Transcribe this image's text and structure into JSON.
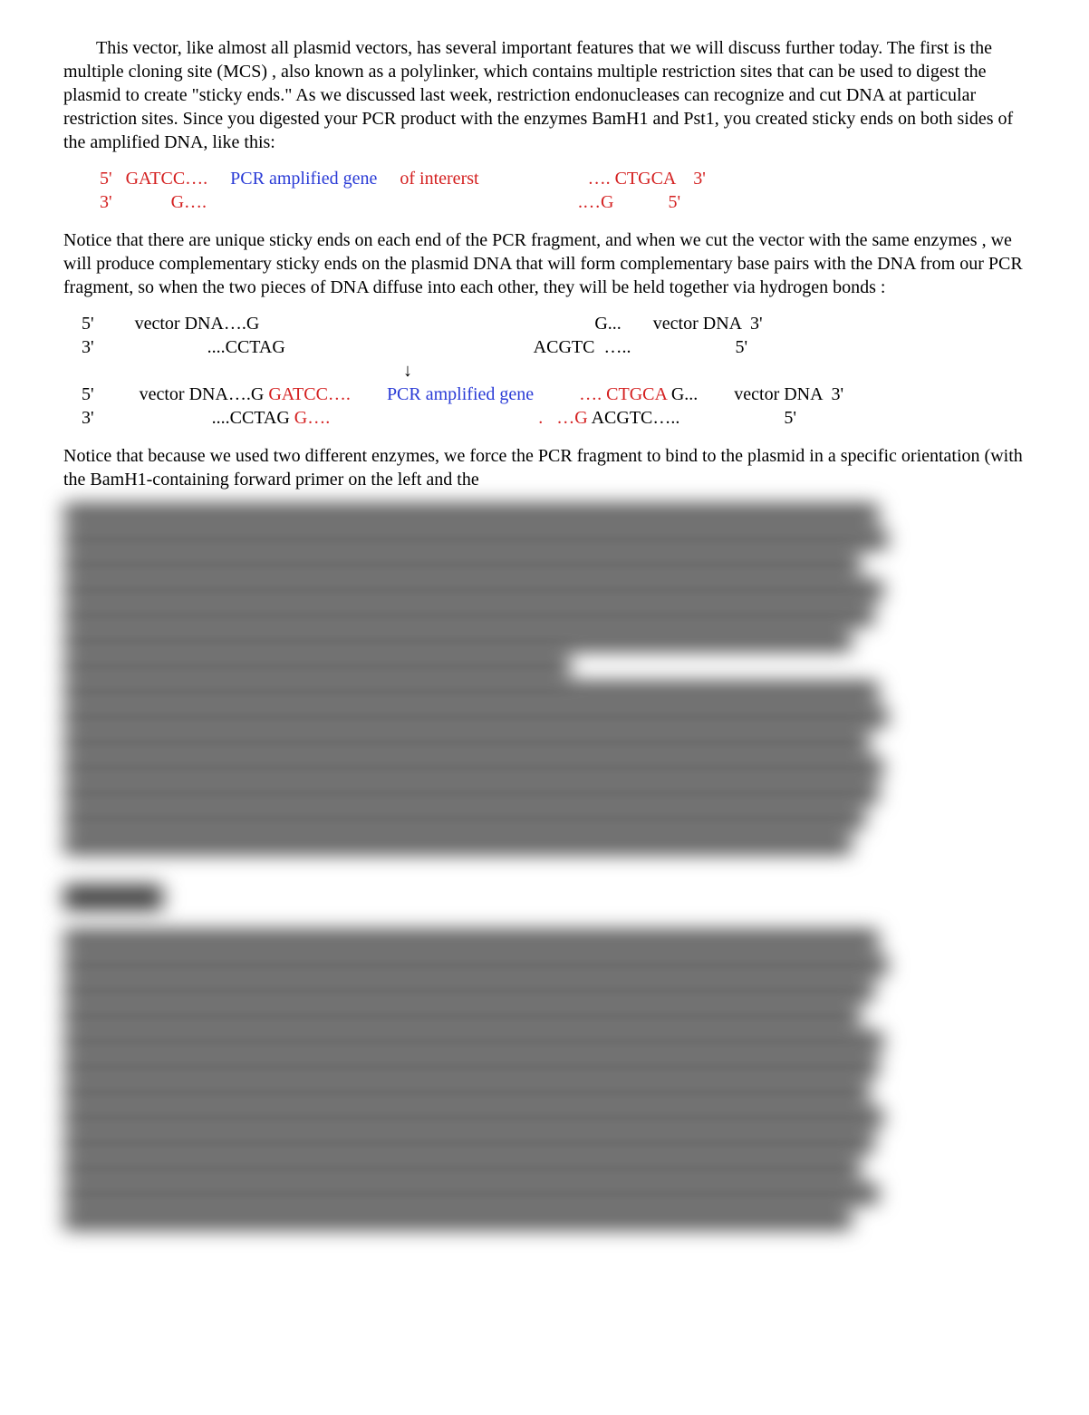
{
  "colors": {
    "text": "#000000",
    "red": "#d42020",
    "blue": "#2a3bd6",
    "bg": "#ffffff",
    "blur_text": "#4a4a4a",
    "blur_dark": "#3a3a3a"
  },
  "p1_a": "This vector, like almost all plasmid vectors, has several important features that we will discuss further today.    The first is the   multiple cloning site (MCS)",
  "p1_b": ", also known as a polylinker, which contains multiple restriction sites that can be used to digest the plasmid to create \"sticky ends.\"  As we discussed last week, restriction endonucleases can recognize and cut DNA at particular restriction sites.     Since you digested your PCR product with the enzymes BamH1 and Pst1, you created sticky ends on both sides of the amplified DNA, like this:",
  "seq1_l1_a": "        5'   GATCC….     ",
  "seq1_l1_b": "PCR amplified gene",
  "seq1_l1_c": "     of intererst",
  "seq1_l1_d": "                        …. CTGCA    3'",
  "seq1_l2_a": "        3'             G….",
  "seq1_l2_b": "                                                                                  .…G            5'",
  "p2_a": "Notice that there are unique sticky ends on each end of the PCR fragment, and when we cut the vector  with the same enzymes",
  "p2_b": ", we will produce complementary sticky ends on the plasmid DNA that will form  complementary base pairs      with the DNA from our PCR fragment, so when the two pieces of DNA diffuse into each other, they will be held together via          hydrogen bonds     :",
  "seq2_l1": "    5'         vector DNA….G                                                                          G...       vector DNA  3'",
  "seq2_l2": "    3'                         ....CCTAG                                                       ACGTC  …..                       5'",
  "seq2_l3": "                                                                           ↓",
  "seq2_l4_a": "    5'          vector DNA….G",
  "seq2_l4_b": " GATCC….",
  "seq2_l4_c": "        PCR amplified gene",
  "seq2_l4_d": "          …. CTGCA ",
  "seq2_l4_e": "G...        vector DNA  3'",
  "seq2_l5_a": "    3'                          ....CCTAG",
  "seq2_l5_b": " G….",
  "seq2_l5_c": "                                              .   …G ",
  "seq2_l5_d": "ACGTC…..                       5'",
  "p3": "Notice that because we used two different enzymes, we force the PCR fragment to bind to the plasmid in a specific orientation (with the BamH1-containing forward primer on the left and the",
  "blur_block1": {
    "widths": [
      900,
      910,
      880,
      905,
      895,
      870,
      560,
      900,
      910,
      890,
      905,
      900,
      885,
      870
    ]
  },
  "blur_block2": {
    "widths": [
      900,
      910,
      895,
      880,
      905,
      900,
      890,
      905,
      895,
      880,
      900,
      870
    ]
  }
}
